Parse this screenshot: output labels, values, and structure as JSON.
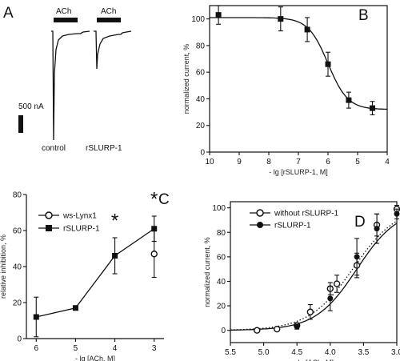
{
  "panels": {
    "a": "A",
    "b": "B",
    "c": "C",
    "d": "D"
  },
  "panelA": {
    "bar_label_1": "ACh",
    "bar_label_2": "ACh",
    "scale_label": "500 nA",
    "trace_label_1": "control",
    "trace_label_2": "rSLURP-1"
  },
  "chart_data": [
    {
      "id": "B",
      "type": "line",
      "xlabel": "- lg [rSLURP-1, M]",
      "ylabel": "normalized current, %",
      "xlim": [
        10,
        4
      ],
      "ylim": [
        0,
        110
      ],
      "xticks": [
        "10",
        "9",
        "8",
        "7",
        "6",
        "5",
        "4"
      ],
      "yticks": [
        "0",
        "20",
        "40",
        "60",
        "80",
        "100"
      ],
      "grid": false,
      "series": [
        {
          "x": [
            9.7,
            7.6,
            6.7,
            6.0,
            5.3,
            4.5
          ],
          "y": [
            103,
            100,
            92,
            66,
            39,
            33
          ],
          "err": [
            7,
            9,
            9,
            9,
            6,
            5
          ]
        }
      ],
      "fit": {
        "bottom": 32,
        "top": 101,
        "log_ic50": 6.0,
        "hill": 1.3
      }
    },
    {
      "id": "C",
      "type": "line",
      "xlabel": "- lg [ACh, M]",
      "ylabel": "relative inhibition, %",
      "xlim": [
        6.25,
        2.75
      ],
      "ylim": [
        0,
        80
      ],
      "xticks": [
        "6",
        "5",
        "4",
        "3"
      ],
      "yticks": [
        "0",
        "20",
        "40",
        "60",
        "80"
      ],
      "grid": false,
      "legend": "top-left",
      "series": [
        {
          "name": "ws-Lynx1",
          "marker": "open-circle",
          "x": [
            3
          ],
          "y": [
            47
          ],
          "err": [
            13
          ]
        },
        {
          "name": "rSLURP-1",
          "marker": "filled-square",
          "x": [
            6,
            5,
            4,
            3
          ],
          "y": [
            12,
            17,
            46,
            61
          ],
          "err": [
            11,
            0,
            10,
            7
          ]
        }
      ],
      "annotations": [
        {
          "text": "*",
          "x": 4,
          "y": 66
        },
        {
          "text": "*",
          "x": 3,
          "y": 78
        }
      ]
    },
    {
      "id": "D",
      "type": "line",
      "xlabel": "- lg [ACh, M]",
      "ylabel": "normalized current, %",
      "xlim": [
        5.5,
        3.0
      ],
      "ylim": [
        -10,
        105
      ],
      "xticks": [
        "5.5",
        "5.0",
        "4.5",
        "4.0",
        "3.5",
        "3.0"
      ],
      "yticks": [
        "0",
        "20",
        "40",
        "60",
        "80",
        "100"
      ],
      "grid": false,
      "legend": "top-left",
      "series": [
        {
          "name": "without rSLURP-1",
          "marker": "open-circle",
          "x": [
            5.1,
            4.8,
            4.5,
            4.3,
            4.0,
            3.9,
            3.6,
            3.3,
            3.0
          ],
          "y": [
            0,
            1,
            4,
            15,
            34,
            38,
            53,
            86,
            99
          ],
          "err": [
            0,
            0,
            2,
            6,
            5,
            7,
            10,
            9,
            3
          ]
        },
        {
          "name": "rSLURP-1",
          "marker": "filled-circle",
          "x": [
            4.5,
            4.0,
            3.6,
            3.3,
            3.0
          ],
          "y": [
            3,
            26,
            60,
            83,
            95
          ],
          "err": [
            2,
            10,
            15,
            12,
            4
          ]
        }
      ],
      "fits": [
        {
          "series": "without rSLURP-1",
          "style": "dotted",
          "log_ec50": 3.65,
          "hill": 1.3,
          "top": 102
        },
        {
          "series": "rSLURP-1",
          "style": "solid",
          "log_ec50": 3.6,
          "hill": 1.4,
          "top": 100
        }
      ]
    }
  ]
}
